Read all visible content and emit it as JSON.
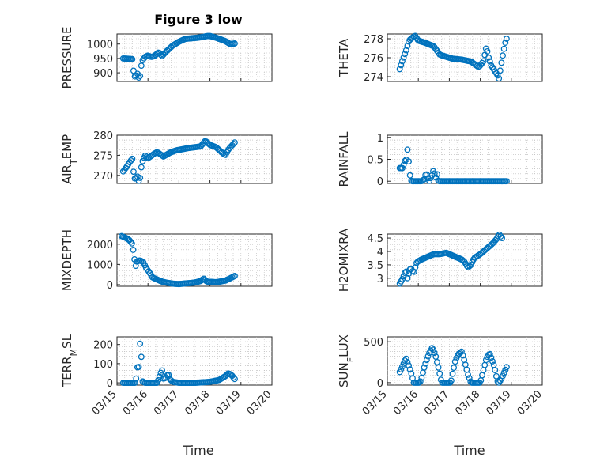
{
  "figure": {
    "title": "Figure 3 low",
    "xlabel": "Time",
    "marker_color": "#0072BD",
    "x_tick_labels": [
      "03/15",
      "03/16",
      "03/17",
      "03/18",
      "03/19",
      "03/20"
    ]
  },
  "chart_data": [
    {
      "type": "scatter",
      "ylabel": "PRESSURE",
      "ylim": [
        870,
        1035
      ],
      "yticks": [
        900,
        950,
        1000
      ],
      "ytick_labels": [
        "900",
        "950",
        "1000"
      ],
      "xlim": [
        0,
        5
      ],
      "series": [
        {
          "name": "PRESSURE",
          "knots": [
            [
              0.2,
              950
            ],
            [
              0.48,
              948
            ],
            [
              0.5,
              947
            ],
            [
              0.55,
              890
            ],
            [
              0.6,
              885
            ],
            [
              0.65,
              900
            ],
            [
              0.72,
              878
            ],
            [
              0.76,
              896
            ],
            [
              0.8,
              940
            ],
            [
              0.9,
              955
            ],
            [
              1.0,
              960
            ],
            [
              1.1,
              955
            ],
            [
              1.2,
              958
            ],
            [
              1.35,
              972
            ],
            [
              1.45,
              958
            ],
            [
              1.6,
              975
            ],
            [
              1.8,
              995
            ],
            [
              2.0,
              1008
            ],
            [
              2.2,
              1018
            ],
            [
              2.4,
              1020
            ],
            [
              2.6,
              1022
            ],
            [
              2.8,
              1025
            ],
            [
              2.9,
              1028
            ],
            [
              3.0,
              1028
            ],
            [
              3.2,
              1022
            ],
            [
              3.5,
              1010
            ],
            [
              3.65,
              1000
            ],
            [
              3.8,
              1002
            ]
          ]
        }
      ]
    },
    {
      "type": "scatter",
      "ylabel": "THETA",
      "ylim": [
        273.5,
        278.5
      ],
      "yticks": [
        274,
        276,
        278
      ],
      "ytick_labels": [
        "274",
        "276",
        "278"
      ],
      "xlim": [
        0,
        5
      ],
      "series": [
        {
          "name": "THETA",
          "knots": [
            [
              0.4,
              274.8
            ],
            [
              0.5,
              275.8
            ],
            [
              0.6,
              276.7
            ],
            [
              0.7,
              277.8
            ],
            [
              0.8,
              278.1
            ],
            [
              0.9,
              278.3
            ],
            [
              1.0,
              277.8
            ],
            [
              1.2,
              277.6
            ],
            [
              1.5,
              277.2
            ],
            [
              1.7,
              276.3
            ],
            [
              1.9,
              276.1
            ],
            [
              2.1,
              275.9
            ],
            [
              2.4,
              275.8
            ],
            [
              2.7,
              275.6
            ],
            [
              2.95,
              275.0
            ],
            [
              3.1,
              275.6
            ],
            [
              3.2,
              277.2
            ],
            [
              3.25,
              276.2
            ],
            [
              3.35,
              275.2
            ],
            [
              3.45,
              274.7
            ],
            [
              3.55,
              274.2
            ],
            [
              3.6,
              273.8
            ],
            [
              3.7,
              275.8
            ],
            [
              3.8,
              277.5
            ],
            [
              3.85,
              278.0
            ]
          ]
        }
      ]
    },
    {
      "type": "scatter",
      "ylabel": "AIR_TEMP",
      "ylim": [
        268,
        280
      ],
      "yticks": [
        270,
        275,
        280
      ],
      "ytick_labels": [
        "270",
        "275",
        "280"
      ],
      "xlim": [
        0,
        5
      ],
      "series": [
        {
          "name": "AIR_TEMP",
          "knots": [
            [
              0.2,
              271
            ],
            [
              0.3,
              272
            ],
            [
              0.4,
              273.2
            ],
            [
              0.5,
              274.2
            ],
            [
              0.55,
              269.5
            ],
            [
              0.6,
              269
            ],
            [
              0.65,
              270
            ],
            [
              0.7,
              268.6
            ],
            [
              0.75,
              269.5
            ],
            [
              0.8,
              273
            ],
            [
              0.9,
              275
            ],
            [
              1.0,
              274.3
            ],
            [
              1.1,
              274.8
            ],
            [
              1.2,
              275.4
            ],
            [
              1.3,
              275.8
            ],
            [
              1.5,
              274.7
            ],
            [
              1.7,
              275.6
            ],
            [
              1.9,
              276.2
            ],
            [
              2.1,
              276.5
            ],
            [
              2.3,
              276.8
            ],
            [
              2.5,
              277
            ],
            [
              2.7,
              277.2
            ],
            [
              2.85,
              278.6
            ],
            [
              3.0,
              277.6
            ],
            [
              3.2,
              277
            ],
            [
              3.4,
              275.6
            ],
            [
              3.5,
              275
            ],
            [
              3.6,
              276.5
            ],
            [
              3.8,
              278.2
            ]
          ]
        }
      ]
    },
    {
      "type": "scatter",
      "ylabel": "RAINFALL",
      "ylim": [
        -0.05,
        1.05
      ],
      "yticks": [
        0,
        0.5,
        1
      ],
      "ytick_labels": [
        "0",
        "0.5",
        "1"
      ],
      "xlim": [
        0,
        5
      ],
      "series": [
        {
          "name": "RAINFALL",
          "knots": [
            [
              0.4,
              0.3
            ],
            [
              0.5,
              0.3
            ],
            [
              0.55,
              0.45
            ],
            [
              0.62,
              0.5
            ],
            [
              0.66,
              0.8
            ],
            [
              0.7,
              0.35
            ],
            [
              0.75,
              0.02
            ],
            [
              0.8,
              0
            ],
            [
              1.1,
              0
            ],
            [
              1.2,
              0.05
            ],
            [
              1.25,
              0.2
            ],
            [
              1.3,
              0.1
            ],
            [
              1.35,
              0
            ],
            [
              1.45,
              0.15
            ],
            [
              1.5,
              0.28
            ],
            [
              1.55,
              0.05
            ],
            [
              1.6,
              0.18
            ],
            [
              1.65,
              0
            ],
            [
              2.0,
              0
            ],
            [
              2.5,
              0
            ],
            [
              3.0,
              0
            ],
            [
              3.5,
              0
            ],
            [
              3.85,
              0
            ]
          ]
        }
      ]
    },
    {
      "type": "scatter",
      "ylabel": "MIXDEPTH",
      "ylim": [
        -80,
        2500
      ],
      "yticks": [
        0,
        1000,
        2000
      ],
      "ytick_labels": [
        "0",
        "1000",
        "2000"
      ],
      "xlim": [
        0,
        5
      ],
      "series": [
        {
          "name": "MIXDEPTH",
          "knots": [
            [
              0.15,
              2400
            ],
            [
              0.3,
              2300
            ],
            [
              0.4,
              2200
            ],
            [
              0.5,
              2000
            ],
            [
              0.55,
              1400
            ],
            [
              0.6,
              900
            ],
            [
              0.65,
              1150
            ],
            [
              0.75,
              1200
            ],
            [
              0.85,
              1100
            ],
            [
              0.95,
              800
            ],
            [
              1.05,
              600
            ],
            [
              1.15,
              350
            ],
            [
              1.3,
              250
            ],
            [
              1.45,
              150
            ],
            [
              1.6,
              100
            ],
            [
              1.8,
              50
            ],
            [
              2.0,
              30
            ],
            [
              2.2,
              60
            ],
            [
              2.5,
              100
            ],
            [
              2.7,
              180
            ],
            [
              2.8,
              300
            ],
            [
              2.9,
              150
            ],
            [
              3.2,
              120
            ],
            [
              3.5,
              200
            ],
            [
              3.7,
              350
            ],
            [
              3.8,
              430
            ]
          ]
        }
      ]
    },
    {
      "type": "scatter",
      "ylabel": "H2OMIXRA",
      "ylim": [
        2.7,
        4.65
      ],
      "yticks": [
        3,
        3.5,
        4,
        4.5
      ],
      "ytick_labels": [
        "3",
        "3.5",
        "4",
        "4.5"
      ],
      "xlim": [
        0,
        5
      ],
      "series": [
        {
          "name": "H2OMIXRA",
          "knots": [
            [
              0.4,
              2.8
            ],
            [
              0.5,
              3.0
            ],
            [
              0.6,
              3.3
            ],
            [
              0.65,
              3.0
            ],
            [
              0.75,
              3.4
            ],
            [
              0.85,
              3.2
            ],
            [
              0.95,
              3.6
            ],
            [
              1.1,
              3.7
            ],
            [
              1.3,
              3.8
            ],
            [
              1.5,
              3.9
            ],
            [
              1.7,
              3.9
            ],
            [
              1.9,
              3.95
            ],
            [
              2.1,
              3.85
            ],
            [
              2.3,
              3.75
            ],
            [
              2.4,
              3.7
            ],
            [
              2.5,
              3.6
            ],
            [
              2.6,
              3.4
            ],
            [
              2.7,
              3.5
            ],
            [
              2.8,
              3.75
            ],
            [
              3.0,
              3.9
            ],
            [
              3.2,
              4.1
            ],
            [
              3.4,
              4.3
            ],
            [
              3.55,
              4.5
            ],
            [
              3.6,
              4.65
            ],
            [
              3.7,
              4.5
            ]
          ]
        }
      ]
    },
    {
      "type": "scatter",
      "ylabel": "TERR_MSL",
      "ylim": [
        -12,
        240
      ],
      "yticks": [
        0,
        100,
        200
      ],
      "ytick_labels": [
        "0",
        "100",
        "200"
      ],
      "xlim": [
        0,
        5
      ],
      "series": [
        {
          "name": "TERR_MSL",
          "knots": [
            [
              0.2,
              0
            ],
            [
              0.6,
              0
            ],
            [
              0.65,
              60
            ],
            [
              0.68,
              120
            ],
            [
              0.7,
              70
            ],
            [
              0.72,
              180
            ],
            [
              0.75,
              210
            ],
            [
              0.78,
              190
            ],
            [
              0.8,
              10
            ],
            [
              0.9,
              0
            ],
            [
              1.3,
              0
            ],
            [
              1.4,
              45
            ],
            [
              1.45,
              70
            ],
            [
              1.5,
              20
            ],
            [
              1.6,
              30
            ],
            [
              1.65,
              50
            ],
            [
              1.7,
              20
            ],
            [
              1.8,
              5
            ],
            [
              2.0,
              0
            ],
            [
              2.5,
              0
            ],
            [
              3.0,
              5
            ],
            [
              3.3,
              15
            ],
            [
              3.5,
              35
            ],
            [
              3.6,
              50
            ],
            [
              3.7,
              40
            ],
            [
              3.8,
              20
            ]
          ]
        }
      ]
    },
    {
      "type": "scatter",
      "ylabel": "SUN_FLUX",
      "ylim": [
        -30,
        560
      ],
      "yticks": [
        0,
        500
      ],
      "ytick_labels": [
        "0",
        "500"
      ],
      "xlim": [
        0,
        5
      ],
      "series": [
        {
          "name": "SUN_FLUX",
          "knots": [
            [
              0.4,
              130
            ],
            [
              0.5,
              210
            ],
            [
              0.6,
              300
            ],
            [
              0.7,
              200
            ],
            [
              0.8,
              80
            ],
            [
              0.85,
              0
            ],
            [
              1.05,
              0
            ],
            [
              1.1,
              50
            ],
            [
              1.2,
              200
            ],
            [
              1.35,
              360
            ],
            [
              1.45,
              430
            ],
            [
              1.55,
              340
            ],
            [
              1.65,
              180
            ],
            [
              1.75,
              0
            ],
            [
              2.05,
              0
            ],
            [
              2.1,
              100
            ],
            [
              2.2,
              280
            ],
            [
              2.3,
              350
            ],
            [
              2.4,
              380
            ],
            [
              2.5,
              250
            ],
            [
              2.6,
              100
            ],
            [
              2.7,
              0
            ],
            [
              3.0,
              0
            ],
            [
              3.1,
              150
            ],
            [
              3.2,
              300
            ],
            [
              3.3,
              360
            ],
            [
              3.45,
              200
            ],
            [
              3.55,
              20
            ],
            [
              3.6,
              0
            ],
            [
              3.7,
              60
            ],
            [
              3.8,
              150
            ],
            [
              3.85,
              190
            ]
          ]
        }
      ]
    }
  ]
}
